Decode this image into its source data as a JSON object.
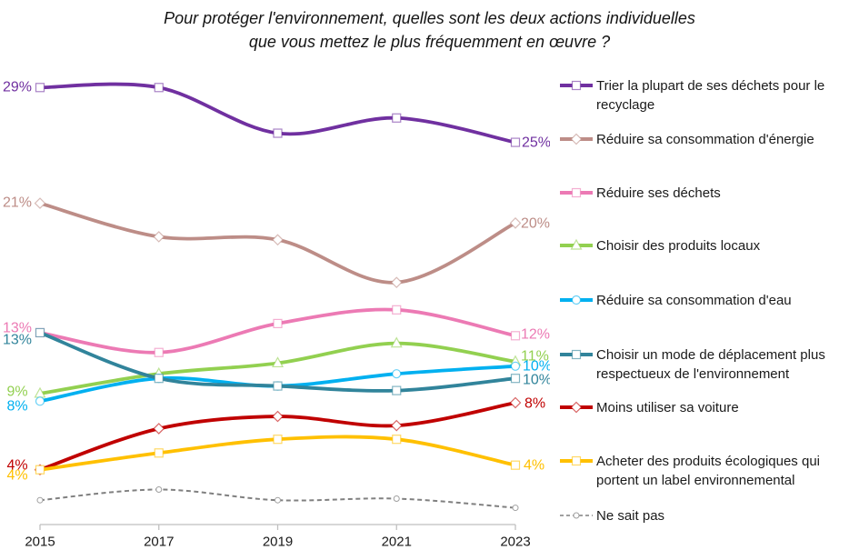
{
  "title": {
    "line1": "Pour protéger l'environnement, quelles sont les deux actions individuelles",
    "line2": "que vous mettez le plus fréquemment en œuvre ?"
  },
  "chart_data": {
    "type": "line",
    "title": "Pour protéger l'environnement, quelles sont les deux actions individuelles que vous mettez le plus fréquemment en œuvre ?",
    "x": [
      "2015",
      "2017",
      "2019",
      "2021",
      "2023"
    ],
    "xlabel": "",
    "ylabel": "",
    "ylim": [
      0,
      30
    ],
    "y_axis_visible": false,
    "grid": false,
    "smooth": true,
    "value_unit": "%",
    "legend_position": "right",
    "axis_color": "#BFBFBF",
    "series": [
      {
        "name": "Trier la plupart de ses déchets pour le recyclage",
        "color": "#7030A0",
        "marker": "square",
        "line_style": "solid",
        "values": [
          28.7,
          28.7,
          25.7,
          26.7,
          25.1
        ],
        "start_label": "29%",
        "end_label": "25%"
      },
      {
        "name": "Réduire sa consommation d'énergie",
        "color": "#BD8D87",
        "marker": "diamond",
        "line_style": "solid",
        "values": [
          21.1,
          18.9,
          18.7,
          15.9,
          19.8
        ],
        "start_label": "21%",
        "end_label": "20%"
      },
      {
        "name": "Réduire ses déchets",
        "color": "#EC7AB4",
        "marker": "square",
        "line_style": "solid",
        "values": [
          12.6,
          11.3,
          13.2,
          14.1,
          12.4
        ],
        "start_label": "13%",
        "end_label": "12%"
      },
      {
        "name": "Choisir des produits locaux",
        "color": "#92D050",
        "marker": "triangle",
        "line_style": "solid",
        "values": [
          8.6,
          9.9,
          10.6,
          11.9,
          10.7
        ],
        "start_label": "9%",
        "end_label": "11%"
      },
      {
        "name": "Réduire sa consommation d'eau",
        "color": "#00B0F0",
        "marker": "circle",
        "line_style": "solid",
        "values": [
          8.1,
          9.6,
          9.1,
          9.9,
          10.4
        ],
        "start_label": "8%",
        "end_label": "10%"
      },
      {
        "name": "Choisir un mode de déplacement plus respectueux de l'environnement",
        "color": "#31849B",
        "marker": "square",
        "line_style": "solid",
        "values": [
          12.6,
          9.6,
          9.1,
          8.8,
          9.6
        ],
        "start_label": "13%",
        "end_label": "10%"
      },
      {
        "name": "Moins utiliser sa voiture",
        "color": "#C00000",
        "marker": "diamond",
        "line_style": "solid",
        "values": [
          3.6,
          6.3,
          7.1,
          6.5,
          8.0
        ],
        "start_label": "4%",
        "end_label": "8%"
      },
      {
        "name": "Acheter des produits écologiques qui portent un label environnemental",
        "color": "#FFC000",
        "marker": "square",
        "line_style": "solid",
        "values": [
          3.6,
          4.7,
          5.6,
          5.6,
          3.9
        ],
        "start_label": "4%",
        "end_label": "4%"
      },
      {
        "name": "Ne sait pas",
        "color": "#808080",
        "marker": "small-circle",
        "line_style": "dashed",
        "values": [
          1.6,
          2.3,
          1.6,
          1.7,
          1.1
        ],
        "start_label": null,
        "end_label": null
      }
    ]
  }
}
